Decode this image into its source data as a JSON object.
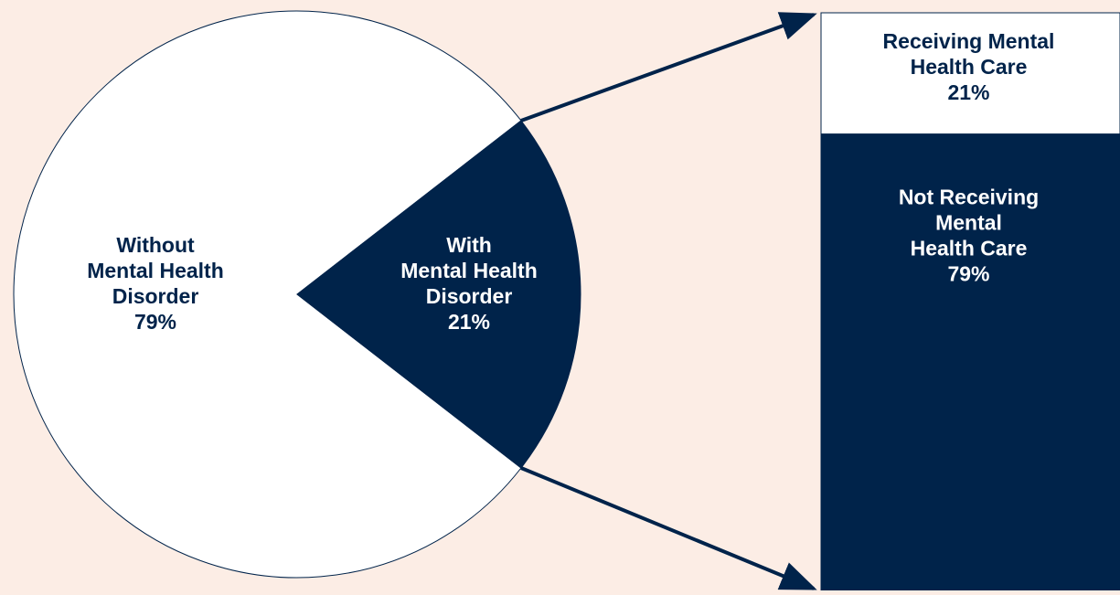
{
  "colors": {
    "background": "#fcede5",
    "dark": "#00234a",
    "light": "#ffffff",
    "outline": "#00234a"
  },
  "chart_data": [
    {
      "type": "pie",
      "slices": [
        {
          "label_lines": [
            "Without",
            "Mental Health",
            "Disorder"
          ],
          "value": 79,
          "value_label": "79%",
          "color": "#ffffff",
          "text_color": "#00234a"
        },
        {
          "label_lines": [
            "With",
            "Mental Health",
            "Disorder"
          ],
          "value": 21,
          "value_label": "21%",
          "color": "#00234a",
          "text_color": "#ffffff"
        }
      ]
    },
    {
      "type": "bar",
      "stacked": true,
      "segments": [
        {
          "label_lines": [
            "Receiving Mental",
            "Health Care"
          ],
          "value": 21,
          "value_label": "21%",
          "color": "#ffffff",
          "text_color": "#00234a"
        },
        {
          "label_lines": [
            "Not Receiving",
            "Mental",
            "Health Care"
          ],
          "value": 79,
          "value_label": "79%",
          "color": "#00234a",
          "text_color": "#ffffff"
        }
      ]
    }
  ]
}
